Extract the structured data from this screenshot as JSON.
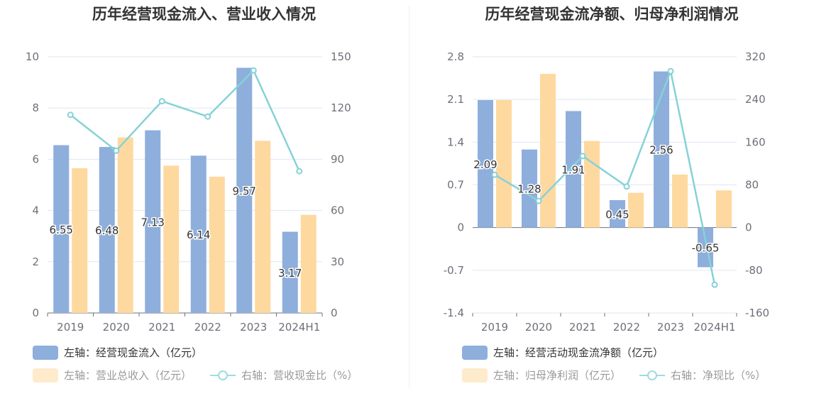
{
  "colors": {
    "blue": "#8eaedc",
    "orange": "#fdd9a0",
    "line": "#85d2d8"
  },
  "charts": [
    {
      "title": "历年经营现金流入、营业收入情况",
      "legend": {
        "bar1": "左轴：经营现金流入（亿元）",
        "bar2": "左轴：营业总收入（亿元）",
        "line": "右轴：营收现金比（%）"
      }
    },
    {
      "title": "历年经营现金流净额、归母净利润情况",
      "legend": {
        "bar1": "左轴：经营活动现金流净额（亿元）",
        "bar2": "左轴：归母净利润（亿元）",
        "line": "右轴：净现比（%）"
      }
    }
  ],
  "chart_data": [
    {
      "type": "bar",
      "title": "历年经营现金流入、营业收入情况",
      "categories": [
        "2019",
        "2020",
        "2021",
        "2022",
        "2023",
        "2024H1"
      ],
      "left_axis": {
        "ticks": [
          "0",
          "2",
          "4",
          "6",
          "8",
          "10"
        ],
        "min": 0,
        "max": 10
      },
      "right_axis": {
        "ticks": [
          "0",
          "30",
          "60",
          "90",
          "120",
          "150"
        ],
        "min": 0,
        "max": 150
      },
      "series": [
        {
          "name": "左轴：经营现金流入（亿元）",
          "axis": "left",
          "type": "bar",
          "values": [
            6.55,
            6.48,
            7.13,
            6.14,
            9.57,
            3.17
          ],
          "labels": [
            "6.55",
            "6.48",
            "7.13",
            "6.14",
            "9.57",
            "3.17"
          ]
        },
        {
          "name": "左轴：营业总收入（亿元）",
          "axis": "left",
          "type": "bar",
          "values": [
            5.65,
            6.85,
            5.75,
            5.32,
            6.72,
            3.83
          ]
        },
        {
          "name": "右轴：营收现金比（%）",
          "axis": "right",
          "type": "line",
          "values": [
            116,
            95,
            124,
            115,
            142,
            83
          ]
        }
      ],
      "grid": true,
      "legend_position": "bottom-left"
    },
    {
      "type": "bar",
      "title": "历年经营现金流净额、归母净利润情况",
      "categories": [
        "2019",
        "2020",
        "2021",
        "2022",
        "2023",
        "2024H1"
      ],
      "left_axis": {
        "ticks": [
          "-1.4",
          "-0.7",
          "0",
          "0.7",
          "1.4",
          "2.1",
          "2.8"
        ],
        "min": -1.4,
        "max": 2.8
      },
      "right_axis": {
        "ticks": [
          "-160",
          "-80",
          "0",
          "80",
          "160",
          "240",
          "320"
        ],
        "min": -160,
        "max": 320
      },
      "series": [
        {
          "name": "左轴：经营活动现金流净额（亿元）",
          "axis": "left",
          "type": "bar",
          "values": [
            2.09,
            1.28,
            1.91,
            0.45,
            2.56,
            -0.65
          ],
          "labels": [
            "2.09",
            "1.28",
            "1.91",
            "0.45",
            "2.56",
            "-0.65"
          ]
        },
        {
          "name": "左轴：归母净利润（亿元）",
          "axis": "left",
          "type": "bar",
          "values": [
            2.09,
            2.52,
            1.42,
            0.57,
            0.87,
            0.61
          ]
        },
        {
          "name": "右轴：净现比（%）",
          "axis": "right",
          "type": "line",
          "values": [
            99,
            50,
            134,
            77,
            293,
            -107
          ]
        }
      ],
      "grid": true,
      "legend_position": "bottom-left"
    }
  ]
}
